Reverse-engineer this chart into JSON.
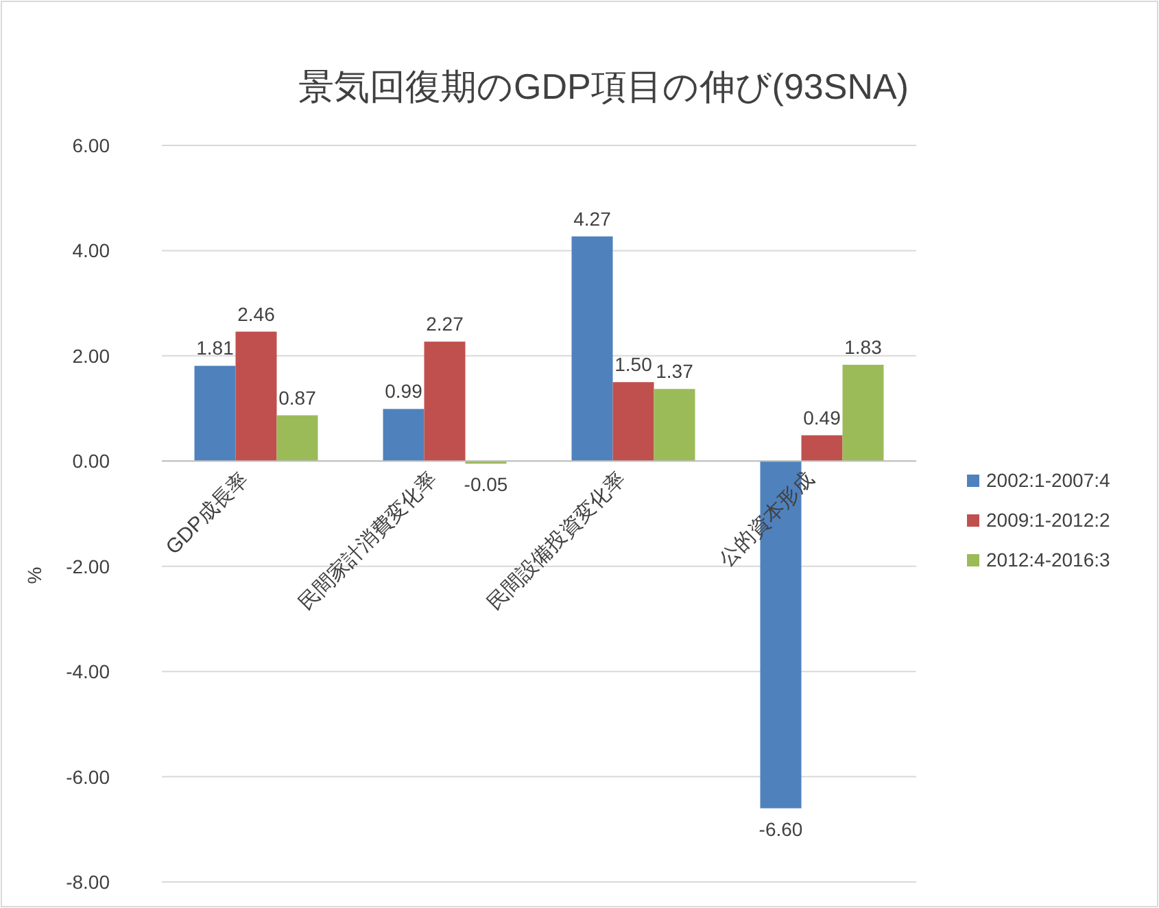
{
  "chart_data": {
    "type": "bar",
    "title": "景気回復期のGDP項目の伸び(93SNA)",
    "ylabel": "%",
    "categories": [
      "GDP成長率",
      "民間家計消費変化率",
      "民間設備投資変化率",
      "公的資本形成"
    ],
    "series": [
      {
        "name": "2002:1-2007:4",
        "color": "#4f81bd",
        "values": [
          1.81,
          0.99,
          4.27,
          -6.6
        ],
        "value_labels": [
          "1.81",
          "0.99",
          "4.27",
          "-6.60"
        ]
      },
      {
        "name": "2009:1-2012:2",
        "color": "#c0504d",
        "values": [
          2.46,
          2.27,
          1.5,
          0.49
        ],
        "value_labels": [
          "2.46",
          "2.27",
          "1.50",
          "0.49"
        ]
      },
      {
        "name": "2012:4-2016:3",
        "color": "#9bbb59",
        "values": [
          0.87,
          -0.05,
          1.37,
          1.83
        ],
        "value_labels": [
          "0.87",
          "-0.05",
          "1.37",
          "1.83"
        ]
      }
    ],
    "ylim": [
      -8,
      6
    ],
    "yticks": [
      {
        "value": -8,
        "label": "-8.00"
      },
      {
        "value": -6,
        "label": "-6.00"
      },
      {
        "value": -4,
        "label": "-4.00"
      },
      {
        "value": -2,
        "label": "-2.00"
      },
      {
        "value": 0,
        "label": "0.00"
      },
      {
        "value": 2,
        "label": "2.00"
      },
      {
        "value": 4,
        "label": "4.00"
      },
      {
        "value": 6,
        "label": "6.00"
      }
    ],
    "grid": "y",
    "legend": "right"
  }
}
